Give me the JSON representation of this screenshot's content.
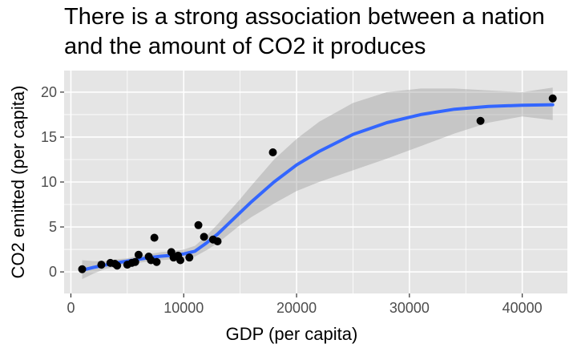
{
  "chart_data": {
    "type": "scatter",
    "title_lines": [
      "There is a strong association between a nation",
      "and the amount of CO2 it produces"
    ],
    "xlabel": "GDP (per capita)",
    "ylabel": "CO2 emitted (per capita)",
    "xlim": [
      -600,
      44000
    ],
    "ylim": [
      -2.4,
      22.4
    ],
    "x_ticks": [
      0,
      10000,
      20000,
      30000,
      40000
    ],
    "x_tick_labels": [
      "0",
      "10000",
      "20000",
      "30000",
      "40000"
    ],
    "y_ticks": [
      0,
      5,
      10,
      15,
      20
    ],
    "y_tick_labels": [
      "0",
      "5",
      "10",
      "15",
      "20"
    ],
    "grid": true,
    "colors": {
      "panel_background": "#e5e5e5",
      "grid": "#ffffff",
      "points": "#000000",
      "smooth_line": "#3366ff",
      "confidence_band": "#999999"
    },
    "points": [
      {
        "x": 1000,
        "y": 0.3
      },
      {
        "x": 2700,
        "y": 0.8
      },
      {
        "x": 3500,
        "y": 1.0
      },
      {
        "x": 3900,
        "y": 0.9
      },
      {
        "x": 4100,
        "y": 0.7
      },
      {
        "x": 5000,
        "y": 0.8
      },
      {
        "x": 5400,
        "y": 1.0
      },
      {
        "x": 5700,
        "y": 1.1
      },
      {
        "x": 6000,
        "y": 1.9
      },
      {
        "x": 6900,
        "y": 1.7
      },
      {
        "x": 7100,
        "y": 1.3
      },
      {
        "x": 7400,
        "y": 3.8
      },
      {
        "x": 7600,
        "y": 1.1
      },
      {
        "x": 8900,
        "y": 2.2
      },
      {
        "x": 9100,
        "y": 1.6
      },
      {
        "x": 9500,
        "y": 1.8
      },
      {
        "x": 9700,
        "y": 1.3
      },
      {
        "x": 10500,
        "y": 1.6
      },
      {
        "x": 11300,
        "y": 5.2
      },
      {
        "x": 11800,
        "y": 3.9
      },
      {
        "x": 12600,
        "y": 3.6
      },
      {
        "x": 13000,
        "y": 3.4
      },
      {
        "x": 17900,
        "y": 13.3
      },
      {
        "x": 36300,
        "y": 16.8
      },
      {
        "x": 42700,
        "y": 19.3
      }
    ],
    "smooth_fit": {
      "x": [
        1000,
        2000,
        3000,
        4000,
        5000,
        6000,
        7000,
        8000,
        9000,
        10000,
        11000,
        12000,
        13000,
        14000,
        15000,
        16000,
        18000,
        20000,
        22000,
        25000,
        28000,
        31000,
        34000,
        37000,
        40000,
        42700
      ],
      "y": [
        0.2,
        0.5,
        0.75,
        1.0,
        1.2,
        1.4,
        1.6,
        1.75,
        1.85,
        2.0,
        2.3,
        3.2,
        4.2,
        5.4,
        6.6,
        7.8,
        10.0,
        11.9,
        13.4,
        15.3,
        16.6,
        17.5,
        18.1,
        18.4,
        18.55,
        18.6
      ],
      "lower": [
        -0.8,
        -0.2,
        0.3,
        0.6,
        0.9,
        1.0,
        1.2,
        1.3,
        1.4,
        1.5,
        1.7,
        2.4,
        3.2,
        4.2,
        5.2,
        6.1,
        7.6,
        9.0,
        10.0,
        11.3,
        12.6,
        14.0,
        15.4,
        16.6,
        17.3,
        16.9
      ],
      "upper": [
        1.3,
        1.2,
        1.2,
        1.4,
        1.5,
        1.8,
        2.0,
        2.2,
        2.3,
        2.5,
        2.9,
        4.0,
        5.3,
        6.7,
        8.1,
        9.6,
        12.5,
        14.8,
        16.7,
        18.8,
        20.0,
        20.4,
        20.4,
        20.2,
        20.0,
        20.5
      ]
    }
  }
}
